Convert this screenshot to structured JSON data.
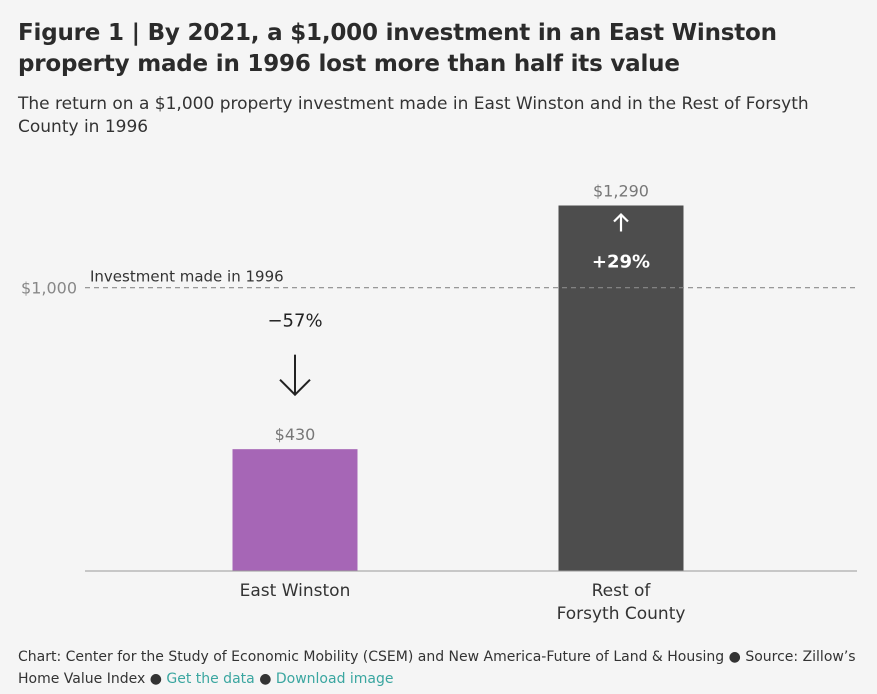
{
  "title": "Figure 1 | By 2021, a $1,000 investment in an East Winston property made in 1996 lost more than half its value",
  "subtitle": "The return on a $1,000 property investment made in East Winston and in the Rest of Forsyth County in 1996",
  "chart_data": {
    "type": "bar",
    "categories": [
      "East Winston",
      "Rest of Forsyth County"
    ],
    "category_lines": [
      [
        "East Winston"
      ],
      [
        "Rest of",
        "Forsyth County"
      ]
    ],
    "values": [
      430,
      1290
    ],
    "value_labels": [
      "$430",
      "$1,290"
    ],
    "change_labels": [
      "−57%",
      "+29%"
    ],
    "change_direction": [
      "down",
      "up"
    ],
    "colors": [
      "#a666b6",
      "#4d4d4d"
    ],
    "reference": {
      "value": 1000,
      "tick_label": "$1,000",
      "note": "Investment made in 1996"
    },
    "ylim": [
      0,
      1500
    ],
    "grid": false
  },
  "footer": {
    "credit": "Chart: Center for the Study of Economic Mobility (CSEM) and New America-Future of Land & Housing",
    "bullet": "●",
    "source": "Source: Zillow’s Home Value Index",
    "get_data": "Get the data",
    "download": "Download image"
  }
}
